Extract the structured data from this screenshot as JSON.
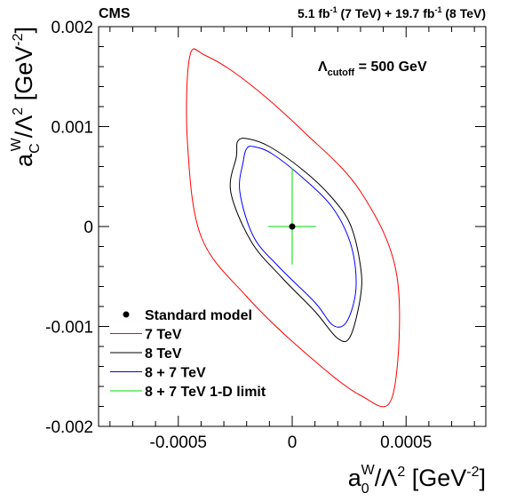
{
  "chart_data": {
    "type": "contour",
    "experiment": "CMS",
    "lumi": {
      "a_val": "5.1",
      "a_unit": "fb",
      "a_exp": "-1",
      "a_energy": " (7 TeV) + ",
      "b_val": "19.7",
      "b_unit": "fb",
      "b_exp": "-1",
      "b_energy": " (8 TeV)"
    },
    "annotation": {
      "symbol": "Λ",
      "sub": "cutoff",
      "text": " = 500 GeV"
    },
    "xaxis": {
      "label_main": "a",
      "label_sub": "0",
      "label_sup": "W",
      "label_over": "/Λ",
      "label_over_sup": "2",
      "label_unit": " [GeV",
      "label_unit_sup": "-2",
      "label_close": "]",
      "range": [
        -0.00085,
        0.00085
      ],
      "ticks": [
        {
          "value": -0.0005,
          "label": "-0.0005"
        },
        {
          "value": 0,
          "label": "0"
        },
        {
          "value": 0.0005,
          "label": "0.0005"
        }
      ]
    },
    "yaxis": {
      "label_main": "a",
      "label_sub": "C",
      "label_sup": "W",
      "label_over": "/Λ",
      "label_over_sup": "2",
      "label_unit": " [GeV",
      "label_unit_sup": "-2",
      "label_close": "]",
      "range": [
        -0.002,
        0.002
      ],
      "ticks": [
        {
          "value": 0.002,
          "label": "0.002"
        },
        {
          "value": 0.001,
          "label": "0.001"
        },
        {
          "value": 0,
          "label": "0"
        },
        {
          "value": -0.001,
          "label": "-0.001"
        },
        {
          "value": -0.002,
          "label": "-0.002"
        }
      ]
    },
    "standard_model": {
      "x": 0,
      "y": 0
    },
    "series": [
      {
        "name": "7 TeV",
        "color": "#ff0000",
        "x": [
          -0.00045,
          -0.00038,
          -0.0002,
          5e-05,
          0.0003,
          0.00046,
          0.00044,
          0.0003,
          5e-05,
          -0.0002,
          -0.0004,
          -0.00046,
          -0.00045
        ],
        "y": [
          0.0017,
          0.00171,
          0.00145,
          0.00095,
          0.00035,
          -0.0005,
          -0.0017,
          -0.00169,
          -0.00125,
          -0.0007,
          -0.0001,
          0.00085,
          0.0017
        ]
      },
      {
        "name": "8 TeV",
        "color": "#000000",
        "x": [
          -0.00024,
          -0.0002,
          -0.0001,
          5e-05,
          0.00017,
          0.000255,
          0.0003,
          0.0003,
          0.000255,
          0.0002,
          0.0001,
          -5e-05,
          -0.00018,
          -0.00027,
          -0.000245,
          -0.00024
        ],
        "y": [
          0.00085,
          0.00088,
          0.0008,
          0.00056,
          0.0003,
          2e-05,
          -0.0004,
          -0.0007,
          -0.0011,
          -0.00112,
          -0.00085,
          -0.0005,
          -0.00015,
          0.00035,
          0.0007,
          0.00085
        ]
      },
      {
        "name": "8 + 7 TeV",
        "color": "#0000ff",
        "x": [
          -0.0002,
          -0.00017,
          -9e-05,
          5e-05,
          0.00018,
          0.00026,
          0.00028,
          0.00024,
          0.00018,
          0.0001,
          -6e-05,
          -0.00017,
          -0.00023,
          -0.000215,
          -0.0002
        ],
        "y": [
          0.00078,
          0.0008,
          0.00073,
          0.00048,
          0.00018,
          -0.0002,
          -0.00062,
          -0.00095,
          -0.00099,
          -0.00076,
          -0.0004,
          -0.0001,
          0.00035,
          0.00065,
          0.00078
        ]
      },
      {
        "name": "8 + 7 TeV 1-D limit",
        "color": "#00dd00",
        "type": "cross",
        "x_interval": [
          -0.000105,
          0.000105
        ],
        "y_interval": [
          -0.00038,
          0.00058
        ]
      }
    ],
    "legend": {
      "placement": "bottom-left",
      "entries": [
        {
          "label": "Standard model",
          "style": "marker",
          "color": "#000000"
        },
        {
          "label": "7 TeV",
          "style": "line",
          "color": "#ff0000"
        },
        {
          "label": "8 TeV",
          "style": "line",
          "color": "#000000"
        },
        {
          "label": "8 + 7 TeV",
          "style": "line",
          "color": "#0000ff"
        },
        {
          "label": "8 + 7 TeV 1-D limit",
          "style": "line",
          "color": "#00dd00"
        }
      ]
    },
    "grid": false
  }
}
